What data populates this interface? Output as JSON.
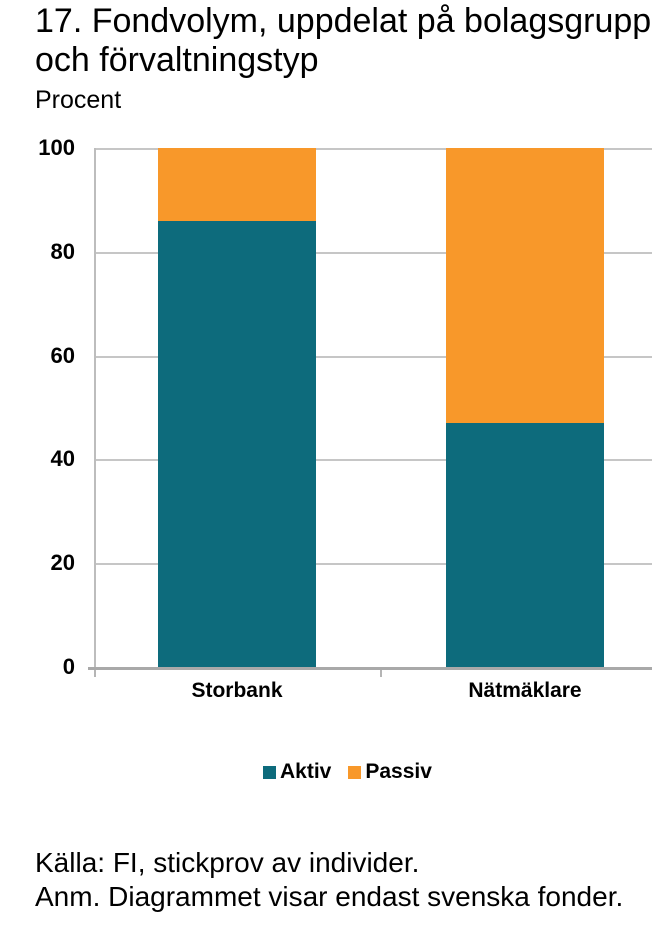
{
  "header": {
    "title_line1": "17. Fondvolym, uppdelat på bolagsgrupp",
    "title_line2": "och förvaltningstyp",
    "unit_label": "Procent"
  },
  "chart_data": {
    "type": "bar",
    "stacked": true,
    "title": "17. Fondvolym, uppdelat på bolagsgrupp och förvaltningstyp",
    "subtitle": "Procent",
    "categories": [
      "Storbank",
      "Nätmäklare"
    ],
    "series": [
      {
        "name": "Aktiv",
        "color": "#0d6b7c",
        "values": [
          86,
          47
        ]
      },
      {
        "name": "Passiv",
        "color": "#f8982a",
        "values": [
          14,
          53
        ]
      }
    ],
    "ylim": [
      0,
      100
    ],
    "yticks": [
      0,
      20,
      40,
      60,
      80,
      100
    ],
    "xlabel": "",
    "ylabel": "Procent",
    "grid": true,
    "legend_position": "bottom",
    "grid_color": "#c6c6c6",
    "axis_color": "#a9a9a9"
  },
  "footer": {
    "source": "Källa: FI, stickprov av individer.",
    "note": "Anm. Diagrammet visar endast svenska fonder."
  }
}
